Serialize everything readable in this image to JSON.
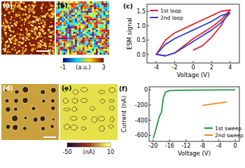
{
  "chart_data": [
    {
      "type": "image",
      "title": "(a)"
    },
    {
      "type": "heatmap",
      "title": "(b)",
      "colorbar": {
        "range": [
          -1,
          3
        ],
        "ticks": [
          -1,
          3
        ],
        "label": "(a.u.)"
      }
    },
    {
      "type": "line",
      "title": "(c)",
      "x_label": "Voltage (V)",
      "y_label": "ESM signal",
      "xlim": [
        -5,
        5
      ],
      "xticks": [
        -4,
        -2,
        0,
        2,
        4
      ],
      "ylim": [
        -0.3,
        1.75
      ],
      "yticks": [
        {
          "value": 0,
          "label": "0.0"
        },
        0.5,
        {
          "value": 1,
          "label": "1.0"
        },
        1.5
      ],
      "legend": "top-left",
      "series": [
        {
          "name": "1st loop",
          "color": "#e8232a",
          "x": [
            0,
            1,
            2,
            3,
            4,
            3,
            2,
            1,
            0,
            -1,
            -2,
            -3,
            -4,
            -3,
            -2,
            -1,
            0,
            1,
            2,
            3,
            4
          ],
          "values": [
            0.15,
            0.3,
            0.6,
            1.0,
            1.55,
            1.5,
            1.35,
            1.2,
            1.05,
            0.9,
            0.75,
            0.5,
            0.0,
            -0.05,
            0.05,
            0.3,
            0.55,
            0.75,
            0.95,
            1.2,
            1.55
          ]
        },
        {
          "name": "2nd loop",
          "color": "#2e3fd6",
          "x": [
            4,
            3,
            2,
            1,
            0,
            -1,
            -2,
            -3,
            -4,
            -3,
            -2,
            -1,
            0,
            1,
            2,
            3,
            4
          ],
          "values": [
            1.45,
            1.35,
            1.15,
            1.0,
            0.85,
            0.7,
            0.55,
            0.35,
            0.0,
            -0.05,
            0.05,
            0.25,
            0.45,
            0.65,
            0.85,
            1.1,
            1.45
          ]
        }
      ]
    },
    {
      "type": "image",
      "title": "(d)"
    },
    {
      "type": "heatmap",
      "title": "(e)",
      "colorbar": {
        "range": [
          -50,
          10
        ],
        "ticks": [
          -50,
          10
        ],
        "label": "(nA)"
      }
    },
    {
      "type": "line",
      "title": "(f)",
      "x_label": "Voltage (V)",
      "y_label": "Current (nA)",
      "xlim": [
        -21,
        1
      ],
      "xticks": [
        -20,
        -16,
        -12,
        -8,
        -4,
        0
      ],
      "ylim": [
        -680,
        40
      ],
      "yticks": [
        -600,
        -400,
        -200,
        0
      ],
      "legend": "bottom-right",
      "series": [
        {
          "name": "1st sweep",
          "color": "#1f9a3a",
          "x": [
            0,
            -4,
            -8,
            -12,
            -16,
            -17,
            -17.5,
            -18,
            -18.5,
            -19,
            -19.5,
            -20
          ],
          "values": [
            0,
            0,
            -2,
            -5,
            -10,
            -30,
            -100,
            -300,
            -350,
            -450,
            -550,
            -640
          ]
        },
        {
          "name": "2nd sweep",
          "color": "#f08a1c",
          "x": [
            -8,
            -6,
            -4,
            -2
          ],
          "values": [
            -205,
            -190,
            -175,
            -160
          ]
        }
      ]
    }
  ]
}
